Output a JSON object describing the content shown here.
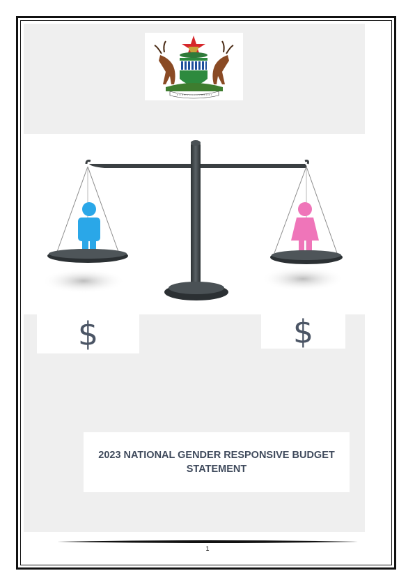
{
  "document": {
    "title": "2023 NATIONAL GENDER RESPONSIVE BUDGET STATEMENT",
    "currency_left": "$",
    "currency_right": "$",
    "page_number": "1"
  },
  "colors": {
    "background_panel": "#efefef",
    "title_text": "#3f4a5c",
    "male_figure": "#2aa7e8",
    "female_figure": "#ef75b9",
    "scale_metal": "#3a3f42"
  },
  "images": {
    "coat_of_arms": "zimbabwe-coat-of-arms",
    "balance_scale": "balance-scale-male-female-icon"
  }
}
